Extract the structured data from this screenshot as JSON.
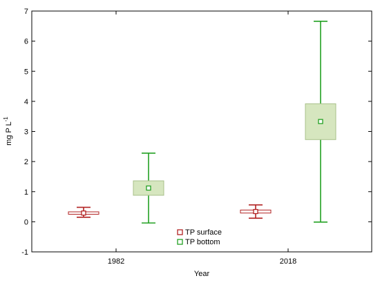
{
  "chart_data": {
    "type": "box",
    "title": "",
    "xlabel": "Year",
    "ylabel": "mg P L",
    "ylabel_superscript": "-1",
    "categories": [
      "1982",
      "2018"
    ],
    "ylim": [
      -1,
      7
    ],
    "yticks": [
      -1,
      0,
      1,
      2,
      3,
      4,
      5,
      6,
      7
    ],
    "grid": false,
    "legend_position": "bottom-center",
    "series": [
      {
        "name": "TP surface",
        "color": "#b22222",
        "fill": "#ffffff",
        "boxes": [
          {
            "category": "1982",
            "center": 0.29,
            "box_low": 0.25,
            "box_high": 0.33,
            "whisker_low": 0.15,
            "whisker_high": 0.48
          },
          {
            "category": "2018",
            "center": 0.34,
            "box_low": 0.29,
            "box_high": 0.39,
            "whisker_low": 0.12,
            "whisker_high": 0.56
          }
        ]
      },
      {
        "name": "TP bottom",
        "color": "#22a022",
        "fill": "#d6e6bf",
        "boxes": [
          {
            "category": "1982",
            "center": 1.12,
            "box_low": 0.88,
            "box_high": 1.36,
            "whisker_low": -0.04,
            "whisker_high": 2.28
          },
          {
            "category": "2018",
            "center": 3.33,
            "box_low": 2.73,
            "box_high": 3.92,
            "whisker_low": -0.01,
            "whisker_high": 6.66
          }
        ]
      }
    ]
  }
}
